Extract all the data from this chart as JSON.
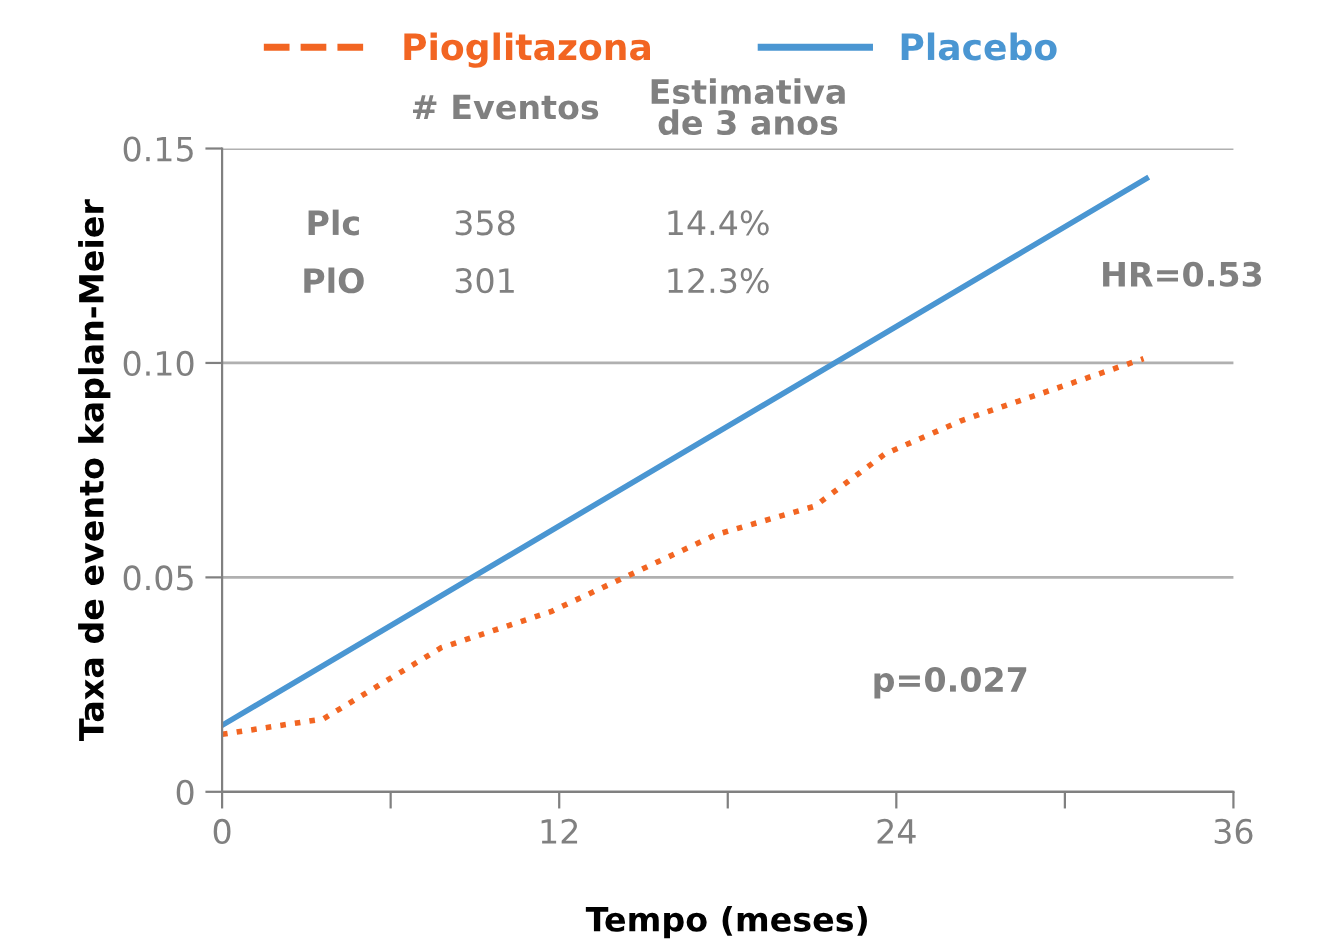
{
  "chart_data": {
    "type": "line",
    "xlabel": "Tempo (meses)",
    "ylabel": "Taxa de evento kaplan-Meier",
    "xlim": [
      0,
      36
    ],
    "xticks": [
      0,
      {
        "value": 6,
        "label": null
      },
      12,
      {
        "value": 18,
        "label": null
      },
      24,
      {
        "value": 30,
        "label": null
      },
      36
    ],
    "ylim": [
      0,
      0.15
    ],
    "yticks": [
      {
        "value": 0,
        "label": "0"
      },
      0.05,
      {
        "value": 0.1,
        "label": "0.10"
      },
      0.15
    ],
    "grid": "y",
    "legend": "top",
    "series": [
      {
        "name": "Pioglitazona",
        "color": "#f26522",
        "line_style": "dotted",
        "x": [
          0,
          3.6,
          7.8,
          11.7,
          17.6,
          21.1,
          23.6,
          26.3,
          32.8
        ],
        "values": [
          0.0134,
          0.017,
          0.0336,
          0.042,
          0.06,
          0.0666,
          0.0788,
          0.0865,
          0.101
        ]
      },
      {
        "name": "Placebo",
        "color": "#4a96d2",
        "line_style": "solid",
        "x": [
          0,
          32.9
        ],
        "values": [
          0.0155,
          0.143
        ]
      }
    ],
    "annotations": [
      "# Eventos",
      "Estimativa\nde 3 anos",
      "Plc",
      "358",
      "14.4%",
      "PlO",
      "301",
      "12.3%",
      "HR=0.53",
      "p=0.027"
    ]
  }
}
